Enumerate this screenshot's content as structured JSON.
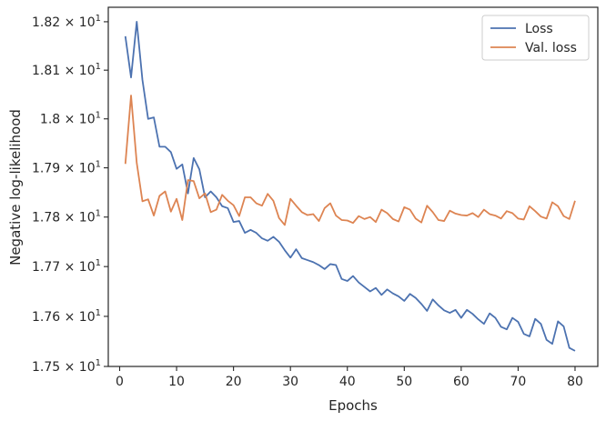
{
  "chart_data": {
    "type": "line",
    "xlabel": "Epochs",
    "ylabel": "Negative log-likelihood",
    "xlim": [
      -2,
      84
    ],
    "ylim": [
      17.5,
      18.23
    ],
    "yscale": "log",
    "grid": false,
    "legend_position": "top-right",
    "x_ticks": [
      {
        "value": 0,
        "label": "0"
      },
      {
        "value": 10,
        "label": "10"
      },
      {
        "value": 20,
        "label": "20"
      },
      {
        "value": 30,
        "label": "30"
      },
      {
        "value": 40,
        "label": "40"
      },
      {
        "value": 50,
        "label": "50"
      },
      {
        "value": 60,
        "label": "60"
      },
      {
        "value": 70,
        "label": "70"
      },
      {
        "value": 80,
        "label": "80"
      }
    ],
    "y_ticks": [
      {
        "value": 17.5,
        "mantissa": "1.75",
        "label": "1.75 × 10^1"
      },
      {
        "value": 17.6,
        "mantissa": "1.76",
        "label": "1.76 × 10^1"
      },
      {
        "value": 17.7,
        "mantissa": "1.77",
        "label": "1.77 × 10^1"
      },
      {
        "value": 17.8,
        "mantissa": "1.78",
        "label": "1.78 × 10^1"
      },
      {
        "value": 17.9,
        "mantissa": "1.79",
        "label": "1.79 × 10^1"
      },
      {
        "value": 18.0,
        "mantissa": "1.8",
        "label": "1.8 × 10^1"
      },
      {
        "value": 18.1,
        "mantissa": "1.81",
        "label": "1.81 × 10^1"
      },
      {
        "value": 18.2,
        "mantissa": "1.82",
        "label": "1.82 × 10^1"
      }
    ],
    "x": [
      1,
      2,
      3,
      4,
      5,
      6,
      7,
      8,
      9,
      10,
      11,
      12,
      13,
      14,
      15,
      16,
      17,
      18,
      19,
      20,
      21,
      22,
      23,
      24,
      25,
      26,
      27,
      28,
      29,
      30,
      31,
      32,
      33,
      34,
      35,
      36,
      37,
      38,
      39,
      40,
      41,
      42,
      43,
      44,
      45,
      46,
      47,
      48,
      49,
      50,
      51,
      52,
      53,
      54,
      55,
      56,
      57,
      58,
      59,
      60,
      61,
      62,
      63,
      64,
      65,
      66,
      67,
      68,
      69,
      70,
      71,
      72,
      73,
      74,
      75,
      76,
      77,
      78,
      79,
      80
    ],
    "series": [
      {
        "name": "Loss",
        "color": "#4c72b0",
        "values": [
          18.17,
          18.085,
          18.2,
          18.08,
          18.0,
          18.003,
          17.943,
          17.943,
          17.932,
          17.898,
          17.907,
          17.848,
          17.92,
          17.897,
          17.84,
          17.852,
          17.84,
          17.822,
          17.818,
          17.79,
          17.792,
          17.768,
          17.774,
          17.768,
          17.757,
          17.752,
          17.76,
          17.75,
          17.733,
          17.718,
          17.735,
          17.717,
          17.713,
          17.709,
          17.703,
          17.695,
          17.705,
          17.703,
          17.675,
          17.671,
          17.681,
          17.668,
          17.659,
          17.65,
          17.657,
          17.643,
          17.654,
          17.646,
          17.64,
          17.631,
          17.645,
          17.637,
          17.625,
          17.611,
          17.634,
          17.622,
          17.612,
          17.607,
          17.613,
          17.597,
          17.613,
          17.605,
          17.594,
          17.585,
          17.606,
          17.597,
          17.579,
          17.574,
          17.597,
          17.589,
          17.565,
          17.56,
          17.595,
          17.585,
          17.553,
          17.545,
          17.59,
          17.58,
          17.537,
          17.531
        ]
      },
      {
        "name": "Val. loss",
        "color": "#dd8452",
        "values": [
          17.908,
          18.048,
          17.91,
          17.832,
          17.836,
          17.803,
          17.843,
          17.852,
          17.811,
          17.837,
          17.794,
          17.875,
          17.873,
          17.838,
          17.848,
          17.81,
          17.815,
          17.845,
          17.833,
          17.824,
          17.802,
          17.84,
          17.84,
          17.828,
          17.823,
          17.847,
          17.833,
          17.798,
          17.784,
          17.837,
          17.823,
          17.81,
          17.804,
          17.806,
          17.792,
          17.818,
          17.828,
          17.803,
          17.794,
          17.793,
          17.788,
          17.802,
          17.796,
          17.8,
          17.79,
          17.815,
          17.808,
          17.796,
          17.791,
          17.82,
          17.815,
          17.797,
          17.789,
          17.823,
          17.81,
          17.794,
          17.792,
          17.813,
          17.807,
          17.804,
          17.803,
          17.808,
          17.8,
          17.815,
          17.806,
          17.803,
          17.797,
          17.812,
          17.808,
          17.797,
          17.795,
          17.822,
          17.812,
          17.801,
          17.797,
          17.83,
          17.822,
          17.802,
          17.796,
          17.833
        ]
      }
    ]
  }
}
